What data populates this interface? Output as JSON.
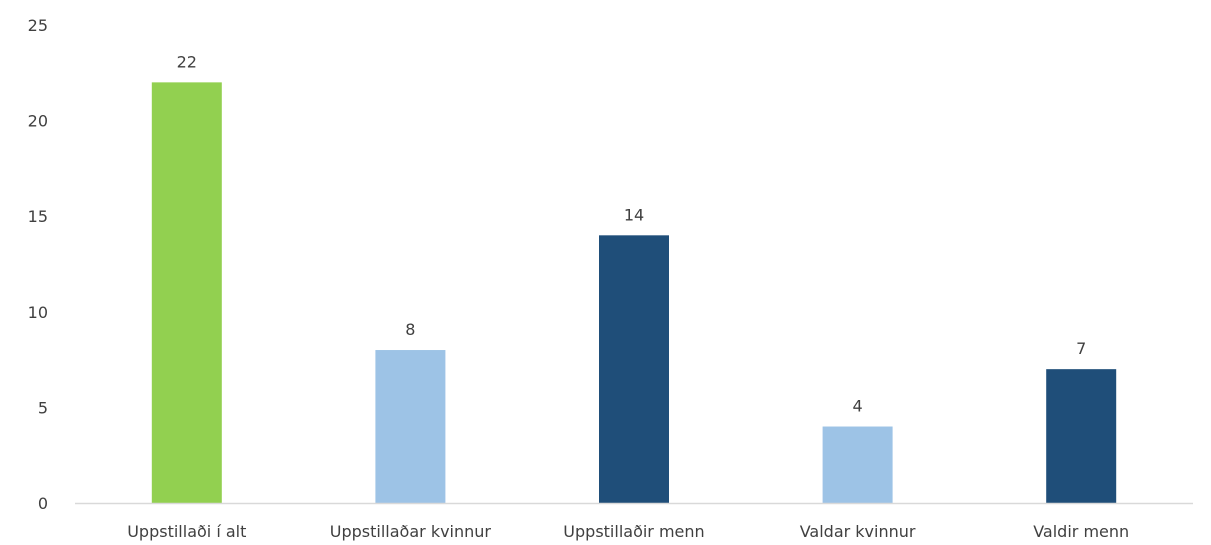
{
  "chart_data": {
    "type": "bar",
    "categories": [
      "Uppstillaði í alt",
      "Uppstillaðar kvinnur",
      "Uppstillaðir menn",
      "Valdar kvinnur",
      "Valdir menn"
    ],
    "values": [
      22,
      8,
      14,
      4,
      7
    ],
    "bar_colors": [
      "#92d050",
      "#9dc3e6",
      "#1f4e79",
      "#9dc3e6",
      "#1f4e79"
    ],
    "ylim": [
      0,
      25
    ],
    "yticks": [
      0,
      5,
      10,
      15,
      20,
      25
    ],
    "grid": false,
    "legend": false,
    "data_labels": true,
    "axis_color": "#d9d9d9",
    "text_color": "#404040"
  }
}
